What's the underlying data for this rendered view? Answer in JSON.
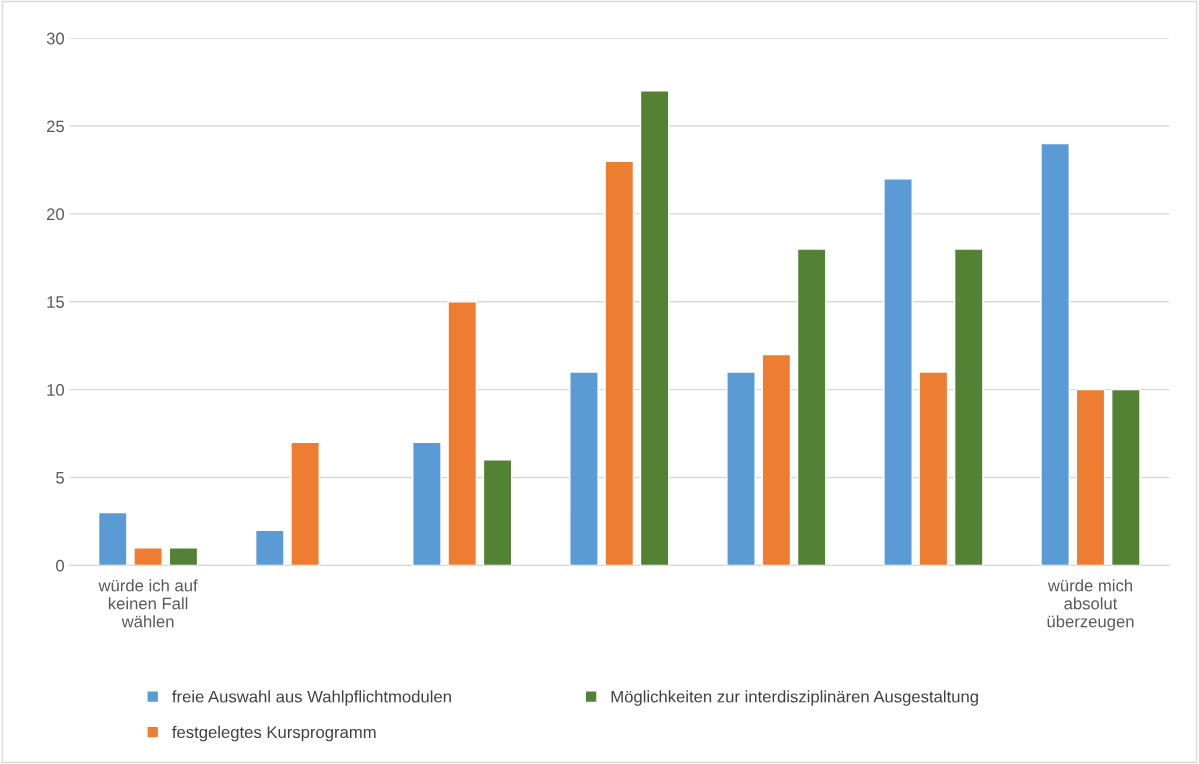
{
  "chart_data": {
    "type": "bar",
    "categories": [
      "würde ich auf\nkeinen Fall\nwählen",
      null,
      null,
      null,
      null,
      null,
      "würde mich\nabsolut\nüberzeugen"
    ],
    "series": [
      {
        "name": "freie Auswahl aus Wahlpflichtmodulen",
        "color": "#5b9bd5",
        "values": [
          3,
          2,
          7,
          11,
          11,
          22,
          24
        ]
      },
      {
        "name": "festgelegtes Kursprogramm",
        "color": "#ed7d31",
        "values": [
          1,
          7,
          15,
          23,
          12,
          11,
          10
        ]
      },
      {
        "name": "Möglichkeiten zur interdisziplinären Ausgestaltung",
        "color": "#548235",
        "values": [
          1,
          null,
          6,
          27,
          18,
          18,
          10
        ]
      }
    ],
    "ylim": [
      0,
      30
    ],
    "yticks": [
      0,
      5,
      10,
      15,
      20,
      25,
      30
    ],
    "grid": "y",
    "legend": "bottom"
  }
}
